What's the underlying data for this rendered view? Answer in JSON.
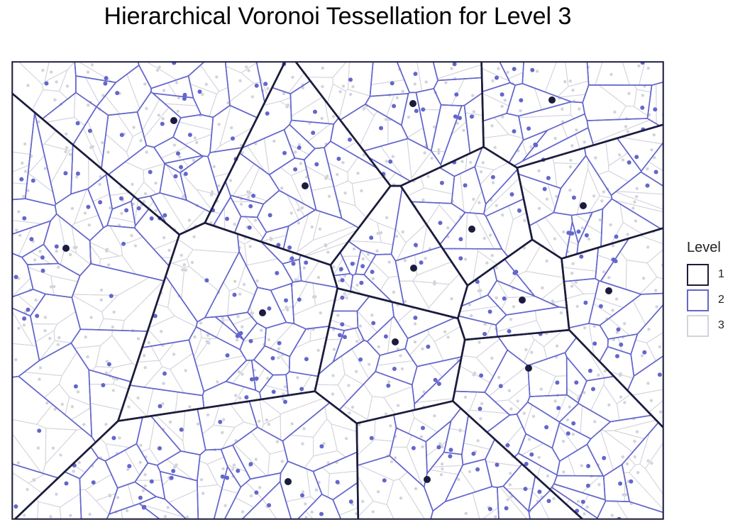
{
  "title": "Hierarchical Voronoi Tessellation for Level 3",
  "legend": {
    "title": "Level",
    "items": [
      {
        "label": "1",
        "color": "#1b1c3d"
      },
      {
        "label": "2",
        "color": "#6366cc"
      },
      {
        "label": "3",
        "color": "#d3d3dc"
      }
    ]
  },
  "chart_data": {
    "type": "voronoi",
    "levels": [
      1,
      2,
      3
    ],
    "colors": {
      "1": "#1b1c3d",
      "2": "#6366cc",
      "3": "#d3d3dc"
    },
    "axes_visible": false,
    "legend_position": "right"
  }
}
